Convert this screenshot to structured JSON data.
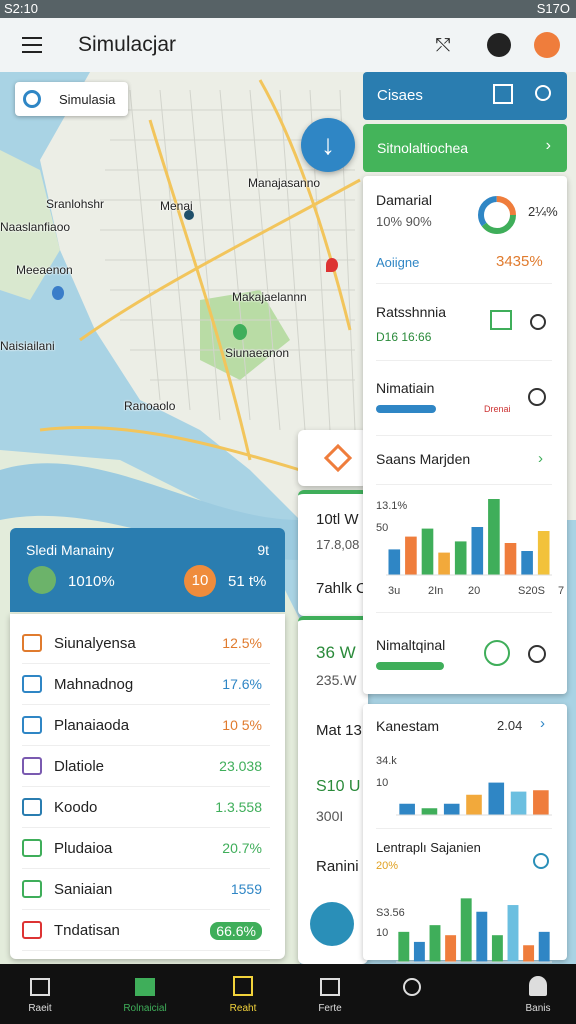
{
  "status_bar": {
    "time": "S2:10",
    "battery": "S17O"
  },
  "app_bar": {
    "title": "Simulacjar"
  },
  "map": {
    "chip": "Simulasia",
    "places": [
      "Manajasanno",
      "Sranlohshr",
      "Menai",
      "Naaslanfiaoo",
      "Meeaenon",
      "Makajaelannn",
      "Siunaeanon",
      "Naisiailani",
      "Ranoaolo"
    ]
  },
  "summary_card": {
    "title": "Sledi Manainy",
    "badge": "9t",
    "left_value": "1010%",
    "pill": "10",
    "right_value": "51 t%"
  },
  "list": {
    "rows": [
      {
        "label": "Siunalyensa",
        "value": "12.5%"
      },
      {
        "label": "Mahnadnog",
        "value": "17.6%"
      },
      {
        "label": "Planaiaoda",
        "value": "10 5%"
      },
      {
        "label": "Dlatiole",
        "value": "23.038"
      },
      {
        "label": "Koodo",
        "value": "1.3.558"
      },
      {
        "label": "Pludaioa",
        "value": "20.7%"
      },
      {
        "label": "Saniaian",
        "value": "1559"
      },
      {
        "label": "Tndatisan",
        "value": "66.6%"
      }
    ]
  },
  "middle_cards": {
    "texts": [
      "10tl W",
      "17.8,08",
      "7ahlk C",
      "36 W",
      "235.W",
      "Mat 13",
      "S10 U",
      "300I",
      "Ranini"
    ]
  },
  "side_panel": {
    "header": "Cisaes",
    "banner": "Sitnolaltiochea",
    "items": [
      {
        "title": "Damarial",
        "subtitle": "10% 90%",
        "badge": "2¼%",
        "link": "Aoiigne",
        "value": "3435%"
      },
      {
        "title": "Ratsshnnia",
        "subtitle": "D16 16:66"
      },
      {
        "title": "Nimatiain",
        "icon_label": "Drenai"
      },
      {
        "title": "Saans Marjden"
      },
      {
        "title": "Nimaltqinal"
      }
    ],
    "chart": {
      "ylim": [
        0,
        100
      ],
      "ytick_labels": [
        "13.1%",
        "50"
      ],
      "xtick_labels": [
        "3u",
        "2In",
        "20",
        "S20S",
        "7"
      ],
      "values": [
        32,
        48,
        58,
        28,
        42,
        60,
        95,
        40,
        30,
        55
      ],
      "colors": [
        "#2f86c5",
        "#ef7d3c",
        "#3fae5a",
        "#f2a93b",
        "#3fae5a",
        "#2f86c5",
        "#3fae5a",
        "#ef7d3c",
        "#2f86c5",
        "#f2c23b"
      ]
    }
  },
  "lower_panels": [
    {
      "title": "Kanestam",
      "value": "2.04",
      "tick_labels": [
        "34.k",
        "10"
      ],
      "ylim": [
        0,
        100
      ],
      "values": [
        25,
        15,
        25,
        45,
        72,
        52,
        55
      ],
      "colors": [
        "#2f86c5",
        "#3fae5a",
        "#2f86c5",
        "#f2a93b",
        "#2f86c5",
        "#6bbfe0",
        "#ef7d3c"
      ]
    },
    {
      "title": "Lentraplı Sajanien",
      "subtitle": "20%",
      "tick_labels": [
        "S3.56",
        "10"
      ],
      "ylim": [
        0,
        100
      ],
      "values": [
        45,
        30,
        55,
        40,
        95,
        75,
        40,
        85,
        25,
        45
      ],
      "colors": [
        "#3fae5a",
        "#2f86c5",
        "#3fae5a",
        "#ef7d3c",
        "#3fae5a",
        "#2f86c5",
        "#3fae5a",
        "#6bbfe0",
        "#ef7d3c",
        "#2f86c5"
      ]
    }
  ],
  "bottom_nav": [
    "Raeit",
    "Rolnaicial",
    "Reaht",
    "Ferte",
    "Banis"
  ]
}
